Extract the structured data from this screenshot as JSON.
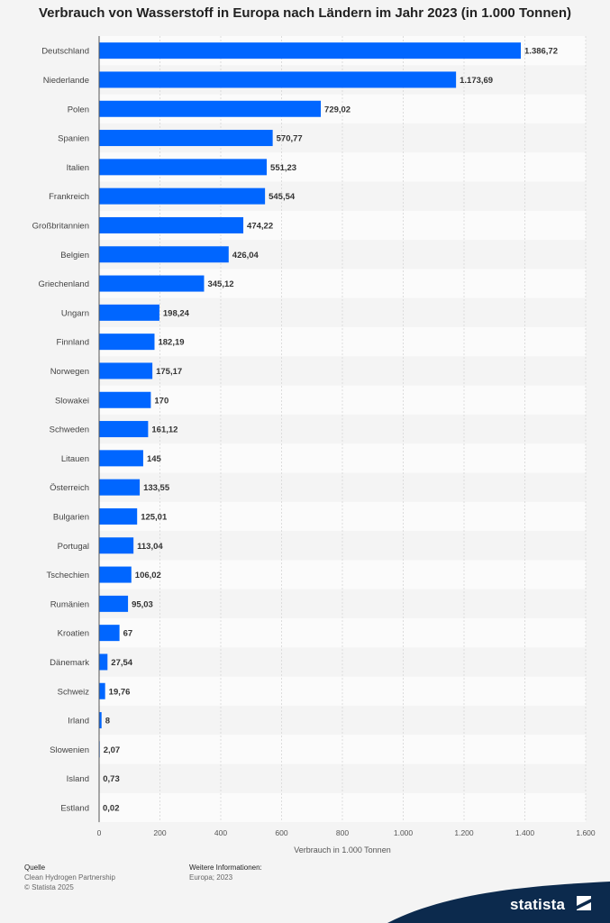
{
  "chart_data": {
    "type": "bar",
    "orientation": "horizontal",
    "title": "Verbrauch von Wasserstoff in Europa nach Ländern im Jahr 2023 (in 1.000 Tonnen)",
    "xlabel": "Verbrauch in 1.000 Tonnen",
    "categories": [
      "Deutschland",
      "Niederlande",
      "Polen",
      "Spanien",
      "Italien",
      "Frankreich",
      "Großbritannien",
      "Belgien",
      "Griechenland",
      "Ungarn",
      "Finnland",
      "Norwegen",
      "Slowakei",
      "Schweden",
      "Litauen",
      "Österreich",
      "Bulgarien",
      "Portugal",
      "Tschechien",
      "Rumänien",
      "Kroatien",
      "Dänemark",
      "Schweiz",
      "Irland",
      "Slowenien",
      "Island",
      "Estland"
    ],
    "values": [
      1386.72,
      1173.69,
      729.02,
      570.77,
      551.23,
      545.54,
      474.22,
      426.04,
      345.12,
      198.24,
      182.19,
      175.17,
      170,
      161.12,
      145,
      133.55,
      125.01,
      113.04,
      106.02,
      95.03,
      67,
      27.54,
      19.76,
      8,
      2.07,
      0.73,
      0.02
    ],
    "value_labels": [
      "1.386,72",
      "1.173,69",
      "729,02",
      "570,77",
      "551,23",
      "545,54",
      "474,22",
      "426,04",
      "345,12",
      "198,24",
      "182,19",
      "175,17",
      "170",
      "161,12",
      "145",
      "133,55",
      "125,01",
      "113,04",
      "106,02",
      "95,03",
      "67",
      "27,54",
      "19,76",
      "8",
      "2,07",
      "0,73",
      "0,02"
    ],
    "xlim": [
      0,
      1600
    ],
    "xticks": [
      0,
      200,
      400,
      600,
      800,
      1000,
      1200,
      1400,
      1600
    ],
    "xtick_labels": [
      "0",
      "200",
      "400",
      "600",
      "800",
      "1.000",
      "1.200",
      "1.400",
      "1.600"
    ],
    "grid": true,
    "bar_color": "#0066ff"
  },
  "footer": {
    "source_heading": "Quelle",
    "source_lines": [
      "Clean Hydrogen Partnership",
      "© Statista 2025"
    ],
    "info_heading": "Weitere Informationen:",
    "info_lines": [
      "Europa; 2023"
    ]
  },
  "brand": {
    "name": "statista",
    "color": "#0c2a4d"
  }
}
